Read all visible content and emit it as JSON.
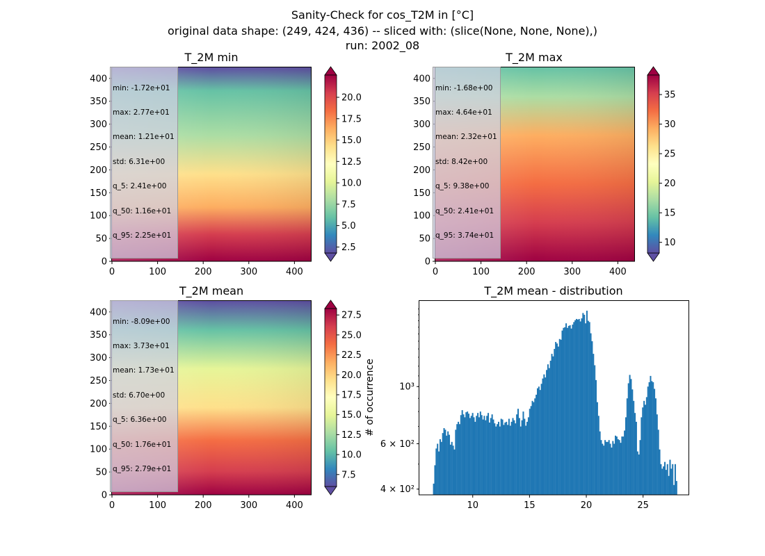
{
  "figure": {
    "title_lines": [
      "Sanity-Check for cos_T2M in [°C]",
      "original data shape: (249, 424, 436) -- sliced with: (slice(None, None, None),)",
      "run: 2002_08"
    ]
  },
  "colormap": {
    "name": "Spectral_r",
    "stops": [
      "#5e4fa2",
      "#3288bd",
      "#66c2a5",
      "#abdda4",
      "#e6f598",
      "#ffffbf",
      "#fee08b",
      "#fdae61",
      "#f46d43",
      "#d53e4f",
      "#9e0142"
    ]
  },
  "maps": [
    {
      "id": "min",
      "title": "T_2M min",
      "stats": [
        "min: -1.72e+01",
        "max: 2.77e+01",
        "mean: 1.21e+01",
        "std: 6.31e+00",
        "q_5: 2.41e+00",
        "q_50: 1.16e+01",
        "q_95: 2.25e+01"
      ],
      "xticks": [
        "0",
        "100",
        "200",
        "300",
        "400"
      ],
      "yticks": [
        "0",
        "50",
        "100",
        "150",
        "200",
        "250",
        "300",
        "350",
        "400"
      ],
      "colorbar": {
        "vmin": 1.8,
        "vmax": 22.6,
        "ticks": [
          "2.5",
          "5.0",
          "7.5",
          "10.0",
          "12.5",
          "15.0",
          "17.5",
          "20.0"
        ],
        "extend": "both"
      }
    },
    {
      "id": "max",
      "title": "T_2M max",
      "stats": [
        "min: -1.68e+00",
        "max: 4.64e+01",
        "mean: 2.32e+01",
        "std: 8.42e+00",
        "q_5: 9.38e+00",
        "q_50: 2.41e+01",
        "q_95: 3.74e+01"
      ],
      "xticks": [
        "0",
        "100",
        "200",
        "300",
        "400"
      ],
      "yticks": [
        "0",
        "50",
        "100",
        "150",
        "200",
        "250",
        "300",
        "350",
        "400"
      ],
      "colorbar": {
        "vmin": 8.2,
        "vmax": 38.3,
        "ticks": [
          "10",
          "15",
          "20",
          "25",
          "30",
          "35"
        ],
        "extend": "both"
      }
    },
    {
      "id": "mean",
      "title": "T_2M mean",
      "stats": [
        "min: -8.09e+00",
        "max: 3.73e+01",
        "mean: 1.73e+01",
        "std: 6.70e+00",
        "q_5: 6.36e+00",
        "q_50: 1.76e+01",
        "q_95: 2.79e+01"
      ],
      "xticks": [
        "0",
        "100",
        "200",
        "300",
        "400"
      ],
      "yticks": [
        "0",
        "50",
        "100",
        "150",
        "200",
        "250",
        "300",
        "350",
        "400"
      ],
      "colorbar": {
        "vmin": 6.0,
        "vmax": 28.3,
        "ticks": [
          "7.5",
          "10.0",
          "12.5",
          "15.0",
          "17.5",
          "20.0",
          "22.5",
          "25.0",
          "27.5"
        ],
        "extend": "both"
      }
    }
  ],
  "chart_data": {
    "type": "bar",
    "title": "T_2M mean - distribution",
    "xlabel": "",
    "ylabel": "# of occurrence",
    "yscale": "log",
    "xlim": [
      5.3,
      29.0
    ],
    "ylim": [
      380,
      2150
    ],
    "xticks": [
      10,
      15,
      20,
      25
    ],
    "yticks": [
      {
        "value": 400,
        "label": "4 × 10²"
      },
      {
        "value": 600,
        "label": "6 × 10²"
      },
      {
        "value": 1000,
        "label": "10³"
      }
    ],
    "bin_edges": [
      6.5,
      28.0
    ],
    "values": [
      420,
      495,
      575,
      600,
      560,
      625,
      610,
      660,
      690,
      680,
      645,
      670,
      650,
      595,
      610,
      590,
      570,
      680,
      715,
      730,
      715,
      775,
      810,
      780,
      760,
      795,
      800,
      785,
      755,
      770,
      790,
      760,
      730,
      770,
      790,
      760,
      800,
      775,
      745,
      770,
      740,
      770,
      790,
      725,
      755,
      780,
      745,
      720,
      700,
      715,
      730,
      700,
      750,
      745,
      710,
      725,
      730,
      710,
      750,
      705,
      730,
      755,
      740,
      720,
      780,
      820,
      755,
      700,
      740,
      800,
      750,
      705,
      730,
      760,
      820,
      840,
      880,
      870,
      900,
      930,
      985,
      1000,
      970,
      1025,
      1075,
      1115,
      1085,
      1160,
      1220,
      1180,
      1260,
      1340,
      1310,
      1400,
      1490,
      1470,
      1430,
      1530,
      1520,
      1650,
      1690,
      1700,
      1760,
      1690,
      1720,
      1730,
      1680,
      1740,
      1780,
      1810,
      1830,
      1820,
      1830,
      1790,
      1840,
      1930,
      1900,
      1760,
      1970,
      1800,
      1780,
      1610,
      1500,
      1340,
      1210,
      1060,
      870,
      770,
      670,
      620,
      600,
      590,
      620,
      610,
      610,
      620,
      600,
      580,
      615,
      600,
      645,
      640,
      625,
      620,
      605,
      640,
      640,
      675,
      760,
      900,
      1030,
      1110,
      1070,
      975,
      880,
      790,
      730,
      560,
      545,
      620,
      760,
      830,
      880,
      850,
      910,
      1000,
      1040,
      1100,
      1050,
      1040,
      980,
      900,
      780,
      680,
      570,
      500,
      480,
      490,
      510,
      475,
      500,
      450,
      520,
      480,
      500,
      415,
      500,
      430
    ]
  }
}
